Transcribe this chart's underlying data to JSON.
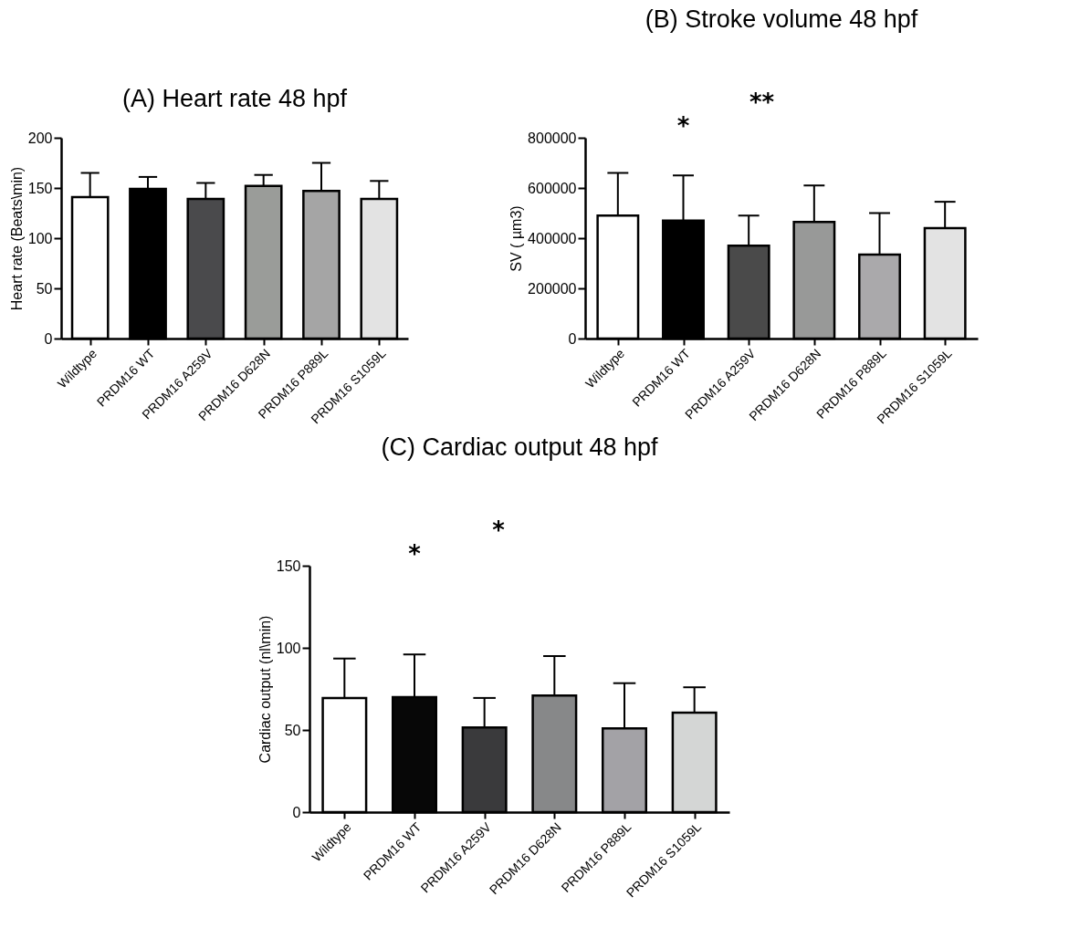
{
  "chart_data": [
    {
      "type": "bar",
      "title": "(A) Heart rate 48 hpf",
      "ylabel": "Heart rate (Beats\\min)",
      "categories": [
        "Wildtype",
        "PRDM16 WT",
        "PRDM16 A259V",
        "PRDM16 D628N",
        "PRDM16 P889L",
        "PRDM16 S1059L"
      ],
      "values": [
        141,
        149,
        139,
        152,
        147,
        139
      ],
      "errors": [
        24,
        12,
        16,
        11,
        28,
        18
      ],
      "colors": [
        "#ffffff",
        "#000000",
        "#4a4a4c",
        "#9a9c99",
        "#a5a5a5",
        "#e3e3e3"
      ],
      "ylim": [
        0,
        200
      ],
      "yticks": [
        0,
        50,
        100,
        150,
        200
      ]
    },
    {
      "type": "bar",
      "title": "(B) Stroke volume 48 hpf",
      "ylabel": "SV ( µm3)",
      "categories": [
        "Wildtype",
        "PRDM16 WT",
        "PRDM16 A259V",
        "PRDM16 D628N",
        "PRDM16 P889L",
        "PRDM16 S1059L"
      ],
      "values": [
        490000,
        470000,
        370000,
        465000,
        335000,
        440000
      ],
      "errors": [
        170000,
        180000,
        120000,
        145000,
        165000,
        105000
      ],
      "colors": [
        "#ffffff",
        "#000000",
        "#4a4a4a",
        "#989998",
        "#aaa9ab",
        "#e3e3e3"
      ],
      "ylim": [
        0,
        800000
      ],
      "yticks": [
        0,
        200000,
        400000,
        600000,
        800000
      ],
      "annotations": [
        "*",
        "**"
      ]
    },
    {
      "type": "bar",
      "title": "(C) Cardiac output 48 hpf",
      "ylabel": "Cardiac output (nl\\min)",
      "categories": [
        "Wildtype",
        "PRDM16 WT",
        "PRDM16 A259V",
        "PRDM16 D628N",
        "PRDM16 P889L",
        "PRDM16 S1059L"
      ],
      "values": [
        69.5,
        70,
        51.5,
        71,
        51,
        60.5
      ],
      "errors": [
        24,
        26,
        18,
        24,
        27.5,
        15.5
      ],
      "colors": [
        "#ffffff",
        "#070707",
        "#3a3a3c",
        "#878889",
        "#a3a2a6",
        "#d4d6d5"
      ],
      "ylim": [
        0,
        150
      ],
      "yticks": [
        0,
        50,
        100,
        150
      ],
      "annotations": [
        "*",
        "*"
      ]
    }
  ]
}
